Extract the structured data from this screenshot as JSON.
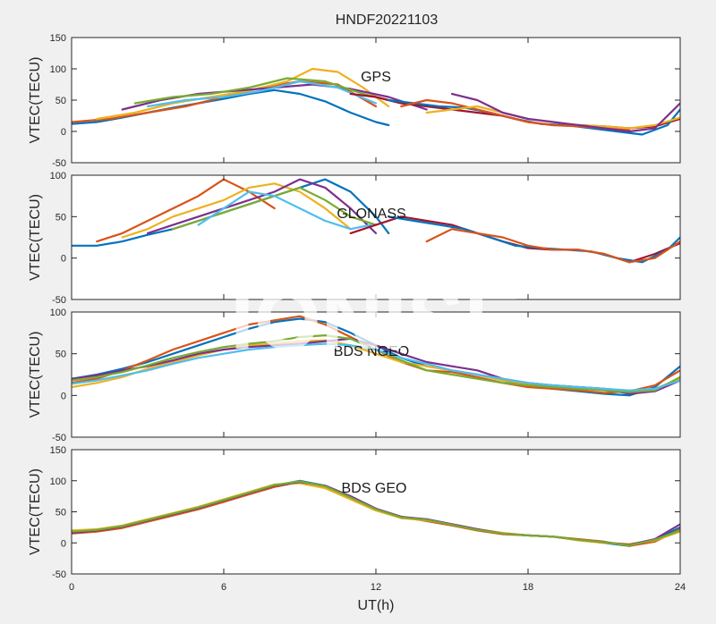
{
  "figure": {
    "title": "HNDF20221103",
    "xlabel": "UT(h)",
    "watermark": "IONISE"
  },
  "colors": {
    "background": "#f0f0f0",
    "axes_face": "#ffffff",
    "axes_edge": "#262626",
    "series": [
      "#0072BD",
      "#D95319",
      "#EDB120",
      "#7E2F8E",
      "#77AC30",
      "#4DBEEE",
      "#A2142F"
    ]
  },
  "chart_data": [
    {
      "type": "line",
      "panel_label": "GPS",
      "ylabel": "VTEC(TECU)",
      "xlim": [
        0,
        24
      ],
      "ylim": [
        -50,
        150
      ],
      "xticks": [
        0,
        6,
        12,
        18,
        24
      ],
      "yticks": [
        -50,
        0,
        50,
        100,
        150
      ],
      "grid": false,
      "series": [
        {
          "x": [
            0,
            1,
            2,
            3,
            4,
            5,
            6,
            7,
            8,
            9,
            10,
            11,
            12,
            12.5
          ],
          "y": [
            12,
            15,
            22,
            30,
            38,
            45,
            52,
            60,
            66,
            60,
            48,
            30,
            15,
            10
          ]
        },
        {
          "x": [
            0,
            1.5,
            3,
            4.5,
            6,
            7.5,
            9,
            10.5,
            12
          ],
          "y": [
            15,
            20,
            30,
            40,
            55,
            70,
            80,
            75,
            40
          ]
        },
        {
          "x": [
            1,
            2.5,
            4,
            5.5,
            7,
            8.5,
            9.5,
            10.5,
            11.5,
            12.5
          ],
          "y": [
            20,
            30,
            45,
            55,
            65,
            80,
            100,
            95,
            70,
            40
          ]
        },
        {
          "x": [
            2,
            3.5,
            5,
            6.5,
            8,
            9.5,
            11,
            12.5,
            14
          ],
          "y": [
            35,
            50,
            60,
            65,
            70,
            75,
            68,
            55,
            35
          ]
        },
        {
          "x": [
            2.5,
            4,
            5.5,
            7,
            8.5,
            10,
            11.5,
            13
          ],
          "y": [
            45,
            55,
            60,
            70,
            85,
            80,
            60,
            45
          ]
        },
        {
          "x": [
            3,
            4.5,
            6,
            7.5,
            9,
            10.5,
            12
          ],
          "y": [
            40,
            50,
            55,
            65,
            80,
            70,
            45
          ]
        },
        {
          "x": [
            11,
            12,
            13,
            14,
            15,
            16,
            17,
            18,
            19,
            20,
            21,
            22,
            23,
            24
          ],
          "y": [
            60,
            55,
            45,
            40,
            35,
            30,
            25,
            15,
            10,
            10,
            8,
            5,
            8,
            20
          ]
        },
        {
          "x": [
            12.5,
            13.5,
            14.5,
            15.5,
            16.5,
            17.5,
            18.5,
            19.5,
            20.5,
            21.5,
            22.5,
            23.5,
            24
          ],
          "y": [
            50,
            45,
            40,
            38,
            30,
            20,
            12,
            10,
            5,
            0,
            -5,
            10,
            35
          ]
        },
        {
          "x": [
            13,
            14,
            15,
            16,
            17,
            18,
            19,
            20,
            21,
            22
          ],
          "y": [
            40,
            50,
            45,
            35,
            25,
            15,
            10,
            8,
            5,
            2
          ]
        },
        {
          "x": [
            14,
            15,
            16,
            17,
            18,
            19,
            20,
            21,
            22,
            23,
            24
          ],
          "y": [
            30,
            35,
            40,
            30,
            20,
            15,
            10,
            8,
            5,
            10,
            22
          ]
        },
        {
          "x": [
            15,
            16,
            17,
            18,
            19,
            20,
            21,
            22,
            23,
            24
          ],
          "y": [
            60,
            50,
            30,
            20,
            15,
            10,
            5,
            0,
            5,
            45
          ]
        }
      ]
    },
    {
      "type": "line",
      "panel_label": "GLONASS",
      "ylabel": "VTEC(TECU)",
      "xlim": [
        0,
        24
      ],
      "ylim": [
        -50,
        100
      ],
      "xticks": [
        0,
        6,
        12,
        18,
        24
      ],
      "yticks": [
        -50,
        0,
        50,
        100
      ],
      "grid": false,
      "series": [
        {
          "x": [
            0,
            1,
            2,
            3,
            4,
            5,
            6,
            7,
            8,
            9,
            10,
            11,
            12,
            12.5
          ],
          "y": [
            15,
            15,
            20,
            28,
            35,
            45,
            55,
            65,
            75,
            85,
            95,
            80,
            50,
            30
          ]
        },
        {
          "x": [
            1,
            2,
            3,
            4,
            5,
            6,
            7,
            8
          ],
          "y": [
            20,
            30,
            45,
            60,
            75,
            95,
            80,
            60
          ]
        },
        {
          "x": [
            2,
            3,
            4,
            5,
            6,
            7,
            8,
            9,
            10,
            11
          ],
          "y": [
            25,
            35,
            50,
            60,
            70,
            85,
            90,
            80,
            60,
            35
          ]
        },
        {
          "x": [
            3,
            4,
            5,
            6,
            7,
            8,
            9,
            10,
            11,
            12
          ],
          "y": [
            30,
            40,
            50,
            60,
            70,
            80,
            95,
            85,
            60,
            30
          ]
        },
        {
          "x": [
            4,
            5,
            6,
            7,
            8,
            9,
            10,
            11,
            12
          ],
          "y": [
            35,
            45,
            55,
            65,
            75,
            85,
            70,
            50,
            40
          ]
        },
        {
          "x": [
            5,
            6,
            7,
            8,
            9,
            10,
            11,
            11.8
          ],
          "y": [
            40,
            60,
            80,
            75,
            60,
            45,
            35,
            40
          ]
        },
        {
          "x": [
            11,
            12,
            13,
            14,
            15,
            16,
            17,
            18,
            19,
            20,
            21,
            22,
            23,
            24
          ],
          "y": [
            30,
            40,
            50,
            45,
            40,
            30,
            20,
            12,
            10,
            10,
            5,
            -5,
            5,
            18
          ]
        },
        {
          "x": [
            12.5,
            13.5,
            14.5,
            15.5,
            16.5,
            17.5,
            18.5,
            19.5,
            20.5,
            21.5,
            22.5,
            23.5,
            24
          ],
          "y": [
            50,
            45,
            40,
            35,
            25,
            15,
            12,
            10,
            8,
            0,
            -5,
            10,
            25
          ]
        },
        {
          "x": [
            14,
            15,
            16,
            17,
            18,
            19,
            20,
            21,
            22,
            23,
            24
          ],
          "y": [
            20,
            35,
            30,
            25,
            15,
            10,
            10,
            5,
            -5,
            0,
            20
          ]
        }
      ]
    },
    {
      "type": "line",
      "panel_label": "BDS NGEO",
      "ylabel": "VTEC(TECU)",
      "xlim": [
        0,
        24
      ],
      "ylim": [
        -50,
        100
      ],
      "xticks": [
        0,
        6,
        12,
        18,
        24
      ],
      "yticks": [
        -50,
        0,
        50,
        100
      ],
      "grid": false,
      "series": [
        {
          "x": [
            0,
            1,
            2,
            3,
            4,
            5,
            6,
            7,
            8,
            9,
            10,
            11,
            12,
            13,
            14,
            15,
            16,
            17,
            18,
            19,
            20,
            21,
            22,
            23,
            24
          ],
          "y": [
            20,
            25,
            32,
            40,
            50,
            60,
            70,
            80,
            88,
            92,
            88,
            75,
            60,
            45,
            35,
            30,
            25,
            18,
            12,
            8,
            5,
            2,
            0,
            10,
            35
          ]
        },
        {
          "x": [
            0,
            1,
            2,
            3,
            4,
            5,
            6,
            7,
            8,
            9,
            10,
            11,
            12,
            13,
            14,
            15,
            16,
            17,
            18,
            19,
            20,
            21,
            22,
            23,
            24
          ],
          "y": [
            15,
            20,
            30,
            42,
            55,
            65,
            75,
            85,
            90,
            95,
            85,
            70,
            55,
            40,
            30,
            28,
            22,
            15,
            10,
            8,
            6,
            3,
            5,
            12,
            30
          ]
        },
        {
          "x": [
            0,
            1,
            2,
            3,
            4,
            5,
            6,
            7,
            8,
            9,
            10,
            11,
            12,
            13,
            14,
            15,
            16,
            17,
            18,
            19,
            20,
            21,
            22,
            23,
            24
          ],
          "y": [
            10,
            15,
            22,
            32,
            40,
            48,
            55,
            60,
            62,
            65,
            66,
            60,
            50,
            40,
            35,
            30,
            25,
            18,
            14,
            12,
            10,
            8,
            5,
            8,
            20
          ]
        },
        {
          "x": [
            0,
            1,
            2,
            3,
            4,
            5,
            6,
            7,
            8,
            9,
            10,
            11,
            12,
            13,
            14,
            15,
            16,
            17,
            18,
            19,
            20,
            21,
            22,
            23,
            24
          ],
          "y": [
            20,
            24,
            30,
            35,
            42,
            50,
            55,
            58,
            60,
            62,
            65,
            68,
            60,
            50,
            40,
            35,
            30,
            20,
            15,
            12,
            10,
            8,
            2,
            5,
            18
          ]
        },
        {
          "x": [
            0,
            1,
            2,
            3,
            4,
            5,
            6,
            7,
            8,
            9,
            10,
            11,
            12,
            13,
            14,
            15,
            16,
            17,
            18,
            19,
            20,
            21,
            22,
            23,
            24
          ],
          "y": [
            18,
            22,
            28,
            36,
            45,
            52,
            58,
            62,
            65,
            70,
            72,
            68,
            55,
            42,
            30,
            25,
            20,
            15,
            12,
            10,
            8,
            6,
            4,
            6,
            22
          ]
        },
        {
          "x": [
            0,
            1,
            2,
            3,
            4,
            5,
            6,
            7,
            8,
            9,
            10,
            11,
            12,
            13,
            14,
            15,
            16,
            17,
            18,
            19,
            20,
            21,
            22,
            23,
            24
          ],
          "y": [
            14,
            18,
            24,
            30,
            38,
            45,
            50,
            55,
            58,
            60,
            62,
            60,
            55,
            45,
            38,
            30,
            25,
            20,
            15,
            12,
            10,
            8,
            6,
            8,
            18
          ]
        }
      ]
    },
    {
      "type": "line",
      "panel_label": "BDS GEO",
      "ylabel": "VTEC(TECU)",
      "xlim": [
        0,
        24
      ],
      "ylim": [
        -50,
        150
      ],
      "xticks": [
        0,
        6,
        12,
        18,
        24
      ],
      "yticks": [
        -50,
        0,
        50,
        100,
        150
      ],
      "grid": false,
      "series": [
        {
          "x": [
            0,
            1,
            2,
            3,
            4,
            5,
            6,
            7,
            8,
            9,
            10,
            11,
            12,
            13,
            14,
            15,
            16,
            17,
            18,
            19,
            20,
            21,
            22,
            23,
            24
          ],
          "y": [
            18,
            20,
            25,
            35,
            45,
            55,
            68,
            80,
            92,
            100,
            92,
            75,
            55,
            40,
            38,
            30,
            22,
            15,
            12,
            10,
            5,
            0,
            -5,
            5,
            25
          ]
        },
        {
          "x": [
            0,
            1,
            2,
            3,
            4,
            5,
            6,
            7,
            8,
            9,
            10,
            11,
            12,
            13,
            14,
            15,
            16,
            17,
            18,
            19,
            20,
            21,
            22,
            23,
            24
          ],
          "y": [
            15,
            18,
            24,
            34,
            44,
            54,
            66,
            78,
            90,
            98,
            90,
            72,
            55,
            42,
            35,
            28,
            20,
            14,
            12,
            10,
            6,
            2,
            -5,
            2,
            22
          ]
        },
        {
          "x": [
            0,
            1,
            2,
            3,
            4,
            5,
            6,
            7,
            8,
            9,
            10,
            11,
            12,
            13,
            14,
            15,
            16,
            17,
            18,
            19,
            20,
            21,
            22,
            23,
            24
          ],
          "y": [
            20,
            22,
            28,
            38,
            48,
            58,
            70,
            82,
            94,
            96,
            88,
            70,
            52,
            40,
            36,
            30,
            22,
            16,
            12,
            10,
            4,
            0,
            -2,
            4,
            18
          ]
        },
        {
          "x": [
            0,
            1,
            2,
            3,
            4,
            5,
            6,
            7,
            8,
            9,
            10,
            11,
            12,
            13,
            14,
            15,
            16,
            17,
            18,
            19,
            20,
            21,
            22,
            23,
            24
          ],
          "y": [
            16,
            20,
            26,
            36,
            46,
            56,
            68,
            80,
            92,
            98,
            92,
            75,
            55,
            42,
            38,
            30,
            22,
            15,
            12,
            10,
            5,
            1,
            -3,
            6,
            30
          ]
        },
        {
          "x": [
            0,
            1,
            2,
            3,
            4,
            5,
            6,
            7,
            8,
            9,
            10,
            11,
            12,
            13,
            14,
            15,
            16,
            17,
            18,
            19,
            20,
            21,
            22,
            23,
            24
          ],
          "y": [
            18,
            21,
            27,
            37,
            47,
            57,
            69,
            81,
            93,
            99,
            91,
            73,
            54,
            41,
            37,
            29,
            21,
            15,
            12,
            10,
            5,
            1,
            -4,
            5,
            20
          ]
        }
      ]
    }
  ]
}
